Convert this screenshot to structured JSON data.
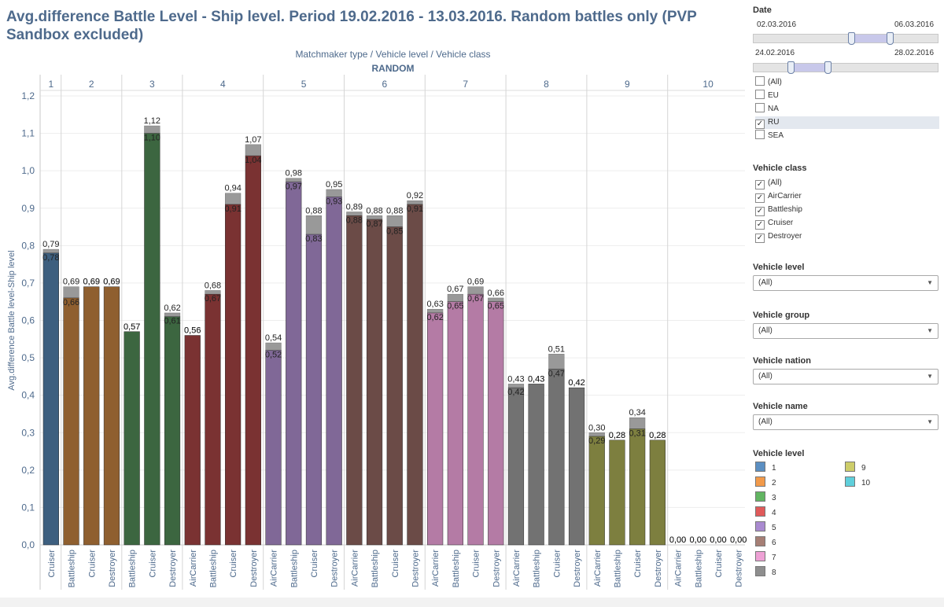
{
  "title": "Avg.difference Battle Level - Ship level.  Period 19.02.2016 - 13.03.2016.  Random battles only (PVP Sandbox excluded)",
  "header_path": "Matchmaker type  /  Vehicle level  /  Vehicle class",
  "header_mm": "RANDOM",
  "chart_data": {
    "type": "bar",
    "ylabel": "Avg.difference Battle level-Ship level",
    "ylim": [
      0,
      1.2
    ],
    "yticks": [
      "0,0",
      "0,1",
      "0,2",
      "0,3",
      "0,4",
      "0,5",
      "0,6",
      "0,7",
      "0,8",
      "0,9",
      "1,0",
      "1,1",
      "1,2"
    ],
    "groups": [
      {
        "level": "1",
        "color": "#3d5f7f",
        "bars": [
          {
            "cls": "Cruiser",
            "base": 0.78,
            "top": 0.79,
            "lb": "0,78",
            "lt": "0,79"
          }
        ]
      },
      {
        "level": "2",
        "color": "#8f5f2f",
        "bars": [
          {
            "cls": "Battleship",
            "base": 0.66,
            "top": 0.69,
            "lb": "0,66",
            "lt": "0,69"
          },
          {
            "cls": "Cruiser",
            "base": 0.69,
            "top": 0.69,
            "lb": "0,69",
            "lt": "0,69"
          },
          {
            "cls": "Destroyer",
            "base": 0.69,
            "top": 0.69,
            "lb": "0,69",
            "lt": "0,69"
          }
        ]
      },
      {
        "level": "3",
        "color": "#3c6640",
        "bars": [
          {
            "cls": "Battleship",
            "base": 0.57,
            "top": 0.57,
            "lb": "0,57",
            "lt": "0,57"
          },
          {
            "cls": "Cruiser",
            "base": 1.1,
            "top": 1.12,
            "lb": "1,10",
            "lt": "1,12"
          },
          {
            "cls": "Destroyer",
            "base": 0.61,
            "top": 0.62,
            "lb": "0,61",
            "lt": "0,62"
          }
        ]
      },
      {
        "level": "4",
        "color": "#7a3232",
        "bars": [
          {
            "cls": "AirCarrier",
            "base": 0.56,
            "top": 0.56,
            "lb": "0,56",
            "lt": "0,56"
          },
          {
            "cls": "Battleship",
            "base": 0.67,
            "top": 0.68,
            "lb": "0,67",
            "lt": "0,68"
          },
          {
            "cls": "Cruiser",
            "base": 0.91,
            "top": 0.94,
            "lb": "0,91",
            "lt": "0,94"
          },
          {
            "cls": "Destroyer",
            "base": 1.04,
            "top": 1.07,
            "lb": "1,04",
            "lt": "1,07"
          }
        ]
      },
      {
        "level": "5",
        "color": "#806897",
        "bars": [
          {
            "cls": "AirCarrier",
            "base": 0.52,
            "top": 0.54,
            "lb": "0,52",
            "lt": "0,54"
          },
          {
            "cls": "Battleship",
            "base": 0.97,
            "top": 0.98,
            "lb": "0,97",
            "lt": "0,98"
          },
          {
            "cls": "Cruiser",
            "base": 0.83,
            "top": 0.88,
            "lb": "0,83",
            "lt": "0,88"
          },
          {
            "cls": "Destroyer",
            "base": 0.93,
            "top": 0.95,
            "lb": "0,93",
            "lt": "0,95"
          }
        ]
      },
      {
        "level": "6",
        "color": "#6b4b47",
        "bars": [
          {
            "cls": "AirCarrier",
            "base": 0.88,
            "top": 0.89,
            "lb": "0,88",
            "lt": "0,89"
          },
          {
            "cls": "Battleship",
            "base": 0.87,
            "top": 0.88,
            "lb": "0,87",
            "lt": "0,88"
          },
          {
            "cls": "Cruiser",
            "base": 0.85,
            "top": 0.88,
            "lb": "0,85",
            "lt": "0,88"
          },
          {
            "cls": "Destroyer",
            "base": 0.91,
            "top": 0.92,
            "lb": "0,91",
            "lt": "0,92"
          }
        ]
      },
      {
        "level": "7",
        "color": "#b47ba5",
        "bars": [
          {
            "cls": "AirCarrier",
            "base": 0.62,
            "top": 0.63,
            "lb": "0,62",
            "lt": "0,63"
          },
          {
            "cls": "Battleship",
            "base": 0.65,
            "top": 0.67,
            "lb": "0,65",
            "lt": "0,67"
          },
          {
            "cls": "Cruiser",
            "base": 0.67,
            "top": 0.69,
            "lb": "0,67",
            "lt": "0,69"
          },
          {
            "cls": "Destroyer",
            "base": 0.65,
            "top": 0.66,
            "lb": "0,65",
            "lt": "0,66"
          }
        ]
      },
      {
        "level": "8",
        "color": "#727272",
        "bars": [
          {
            "cls": "AirCarrier",
            "base": 0.42,
            "top": 0.43,
            "lb": "0,42",
            "lt": "0,43"
          },
          {
            "cls": "Battleship",
            "base": 0.43,
            "top": 0.43,
            "lb": "0,43",
            "lt": "0,43"
          },
          {
            "cls": "Cruiser",
            "base": 0.47,
            "top": 0.51,
            "lb": "0,47",
            "lt": "0,51"
          },
          {
            "cls": "Destroyer",
            "base": 0.42,
            "top": 0.42,
            "lb": "0,42",
            "lt": "0,42"
          }
        ]
      },
      {
        "level": "9",
        "color": "#7d7f3f",
        "bars": [
          {
            "cls": "AirCarrier",
            "base": 0.29,
            "top": 0.3,
            "lb": "0,29",
            "lt": "0,30"
          },
          {
            "cls": "Battleship",
            "base": 0.28,
            "top": 0.28,
            "lb": "0,28",
            "lt": "0,28"
          },
          {
            "cls": "Cruiser",
            "base": 0.31,
            "top": 0.34,
            "lb": "0,31",
            "lt": "0,34"
          },
          {
            "cls": "Destroyer",
            "base": 0.28,
            "top": 0.28,
            "lb": "0,28",
            "lt": "0,28"
          }
        ]
      },
      {
        "level": "10",
        "color": "#3aaab8",
        "bars": [
          {
            "cls": "AirCarrier",
            "base": 0,
            "top": 0,
            "lb": "0,00",
            "lt": "0,00"
          },
          {
            "cls": "Battleship",
            "base": 0,
            "top": 0,
            "lb": "0,00",
            "lt": "0,00"
          },
          {
            "cls": "Cruiser",
            "base": 0,
            "top": 0,
            "lb": "0,00",
            "lt": "0,00"
          },
          {
            "cls": "Destroyer",
            "base": 0,
            "top": 0,
            "lb": "0,00",
            "lt": "0,00"
          }
        ]
      }
    ],
    "top_segment_color": "#999999"
  },
  "sidebar": {
    "date_title": "Date",
    "date_from": "02.03.2016",
    "date_to": "06.03.2016",
    "date_range": [
      0.53,
      0.74
    ],
    "date2_from": "24.02.2016",
    "date2_to": "28.02.2016",
    "date2_range": [
      0.2,
      0.4
    ],
    "regions": [
      {
        "label": "(All)",
        "checked": false
      },
      {
        "label": "EU",
        "checked": false
      },
      {
        "label": "NA",
        "checked": false
      },
      {
        "label": "RU",
        "checked": true
      },
      {
        "label": "SEA",
        "checked": false
      }
    ],
    "vehicle_class_title": "Vehicle class",
    "vehicle_classes": [
      {
        "label": "(All)",
        "checked": true
      },
      {
        "label": "AirCarrier",
        "checked": true
      },
      {
        "label": "Battleship",
        "checked": true
      },
      {
        "label": "Cruiser",
        "checked": true
      },
      {
        "label": "Destroyer",
        "checked": true
      }
    ],
    "dropdowns": [
      {
        "title": "Vehicle level",
        "value": "(All)"
      },
      {
        "title": "Vehicle group",
        "value": "(All)"
      },
      {
        "title": "Vehicle nation",
        "value": "(All)"
      },
      {
        "title": "Vehicle name",
        "value": "(All)"
      }
    ],
    "legend_title": "Vehicle level",
    "legend": [
      {
        "label": "1",
        "color": "#5b8fc2"
      },
      {
        "label": "2",
        "color": "#f29a4a"
      },
      {
        "label": "3",
        "color": "#62b562"
      },
      {
        "label": "4",
        "color": "#e05a5a"
      },
      {
        "label": "5",
        "color": "#a98ad0"
      },
      {
        "label": "6",
        "color": "#a67f75"
      },
      {
        "label": "7",
        "color": "#eea1d5"
      },
      {
        "label": "8",
        "color": "#8e8e8e"
      },
      {
        "label": "9",
        "color": "#cdcd6a"
      },
      {
        "label": "10",
        "color": "#5fcfdb"
      }
    ]
  }
}
